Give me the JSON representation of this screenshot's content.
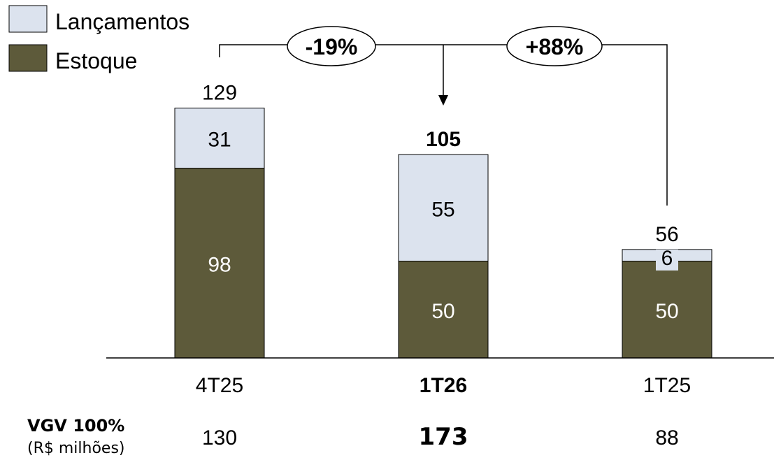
{
  "colors": {
    "lancamentos": "#DCE3EE",
    "estoque": "#5D5A3A",
    "stroke": "#000000"
  },
  "legend": {
    "items": [
      {
        "label": "Lançamentos",
        "color": "#DCE3EE"
      },
      {
        "label": "Estoque",
        "color": "#5D5A3A"
      }
    ]
  },
  "chart_data": {
    "type": "bar",
    "stacked": true,
    "categories": [
      "4T25",
      "1T26",
      "1T25"
    ],
    "highlight_category": "1T26",
    "series": [
      {
        "name": "Estoque",
        "values": [
          98,
          50,
          50
        ]
      },
      {
        "name": "Lançamentos",
        "values": [
          31,
          55,
          6
        ]
      }
    ],
    "totals": [
      129,
      105,
      56
    ],
    "value_labels": {
      "Estoque": [
        "98",
        "50",
        "50"
      ],
      "Lançamentos": [
        "31",
        "55",
        "6"
      ],
      "totals": [
        "129",
        "105",
        "56"
      ]
    },
    "annotations": [
      {
        "text": "-19%",
        "from": "4T25",
        "to": "1T26"
      },
      {
        "text": "+88%",
        "from": "1T25",
        "to": "1T26"
      }
    ],
    "ylim": [
      0,
      140
    ],
    "legend_position": "top-left",
    "grid": false
  },
  "vgv": {
    "label": "VGV 100%",
    "sublabel": "(R$ milhões)",
    "values": [
      "130",
      "173",
      "88"
    ]
  }
}
